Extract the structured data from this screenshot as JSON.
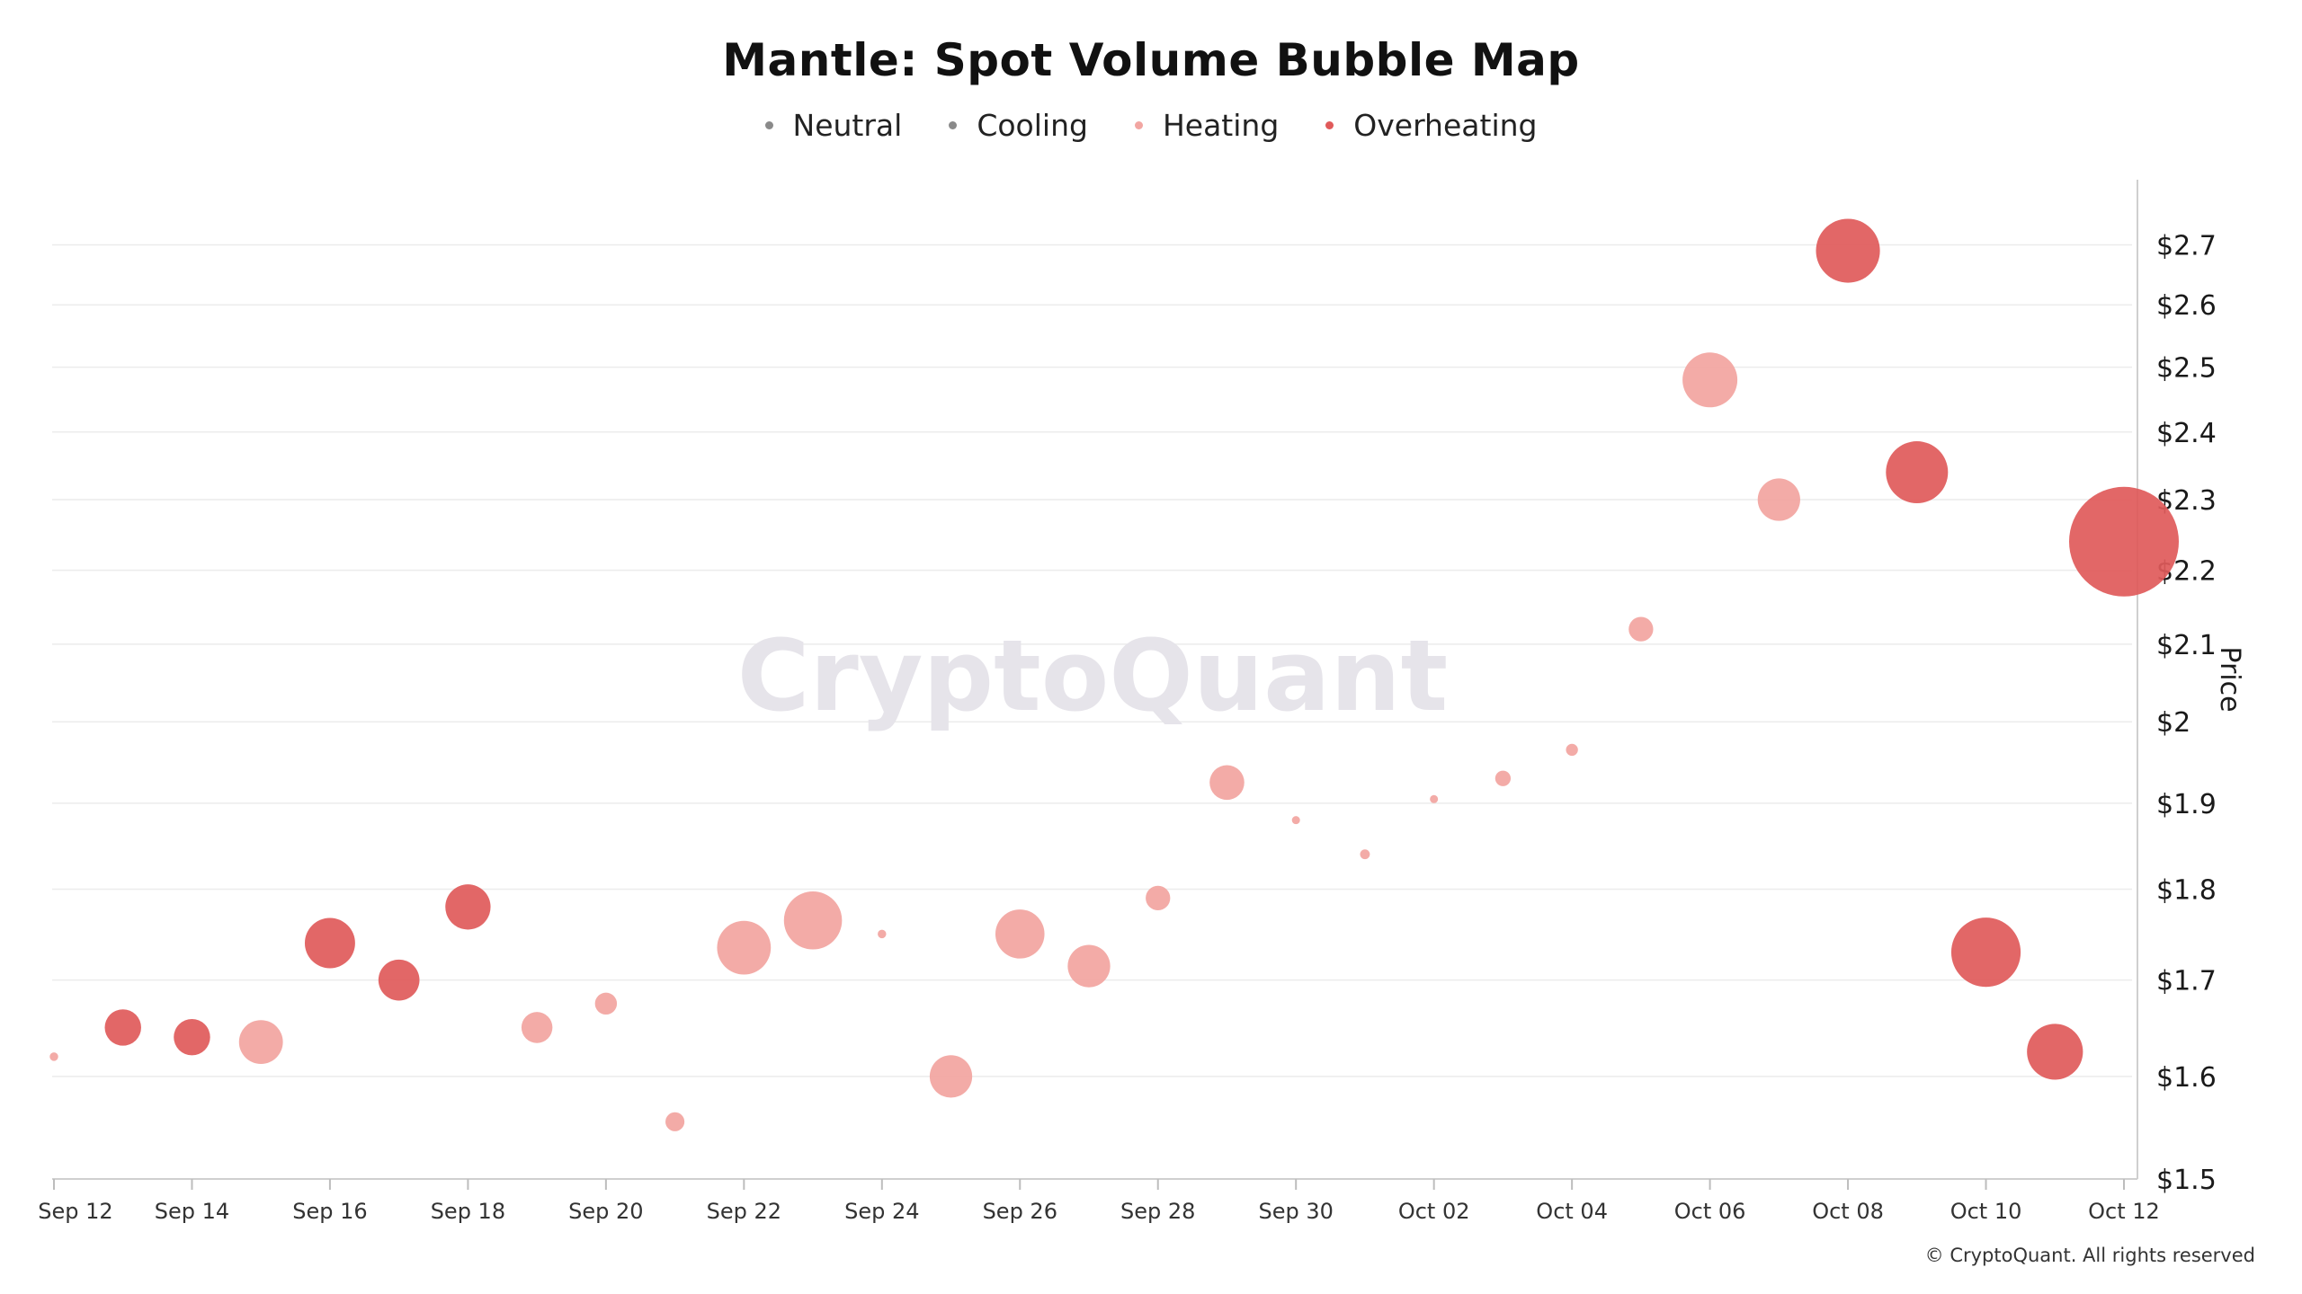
{
  "title": "Mantle: Spot Volume Bubble Map",
  "legend": [
    {
      "label": "Neutral",
      "color": "#8a8a8a"
    },
    {
      "label": "Cooling",
      "color": "#8a8a8a"
    },
    {
      "label": "Heating",
      "color": "#f2a6a2"
    },
    {
      "label": "Overheating",
      "color": "#e05a5a"
    }
  ],
  "watermark": "CryptoQuant",
  "copyright": "© CryptoQuant. All rights reserved",
  "chart_data": {
    "type": "scatter",
    "subtype": "bubble",
    "title": "Mantle: Spot Volume Bubble Map",
    "xlabel": "",
    "ylabel": "Price",
    "y_axis_side": "right",
    "ylim": [
      1.5,
      2.75
    ],
    "yscale": "log",
    "y_ticks": [
      1.5,
      1.6,
      1.7,
      1.8,
      1.9,
      2.0,
      2.1,
      2.2,
      2.3,
      2.4,
      2.5,
      2.6,
      2.7
    ],
    "y_tick_labels": [
      "$1.5",
      "$1.6",
      "$1.7",
      "$1.8",
      "$1.9",
      "$2",
      "$2.1",
      "$2.2",
      "$2.3",
      "$2.4",
      "$2.5",
      "$2.6",
      "$2.7"
    ],
    "x_start": "Sep 12",
    "x_tick_labels": [
      "Sep 12",
      "Sep 14",
      "Sep 16",
      "Sep 18",
      "Sep 20",
      "Sep 22",
      "Sep 24",
      "Sep 26",
      "Sep 28",
      "Sep 30",
      "Oct 02",
      "Oct 04",
      "Oct 06",
      "Oct 08",
      "Oct 10",
      "Oct 12"
    ],
    "x_tick_days": [
      0,
      2,
      4,
      6,
      8,
      10,
      12,
      14,
      16,
      18,
      20,
      22,
      24,
      26,
      28,
      30
    ],
    "grid": true,
    "legend_position": "top-center",
    "points": [
      {
        "date": "Sep 12",
        "day": 0,
        "price": 1.62,
        "volume": 0.3,
        "status": "Heating"
      },
      {
        "date": "Sep 13",
        "day": 1,
        "price": 1.65,
        "volume": 5.5,
        "status": "Overheating"
      },
      {
        "date": "Sep 14",
        "day": 2,
        "price": 1.64,
        "volume": 5.5,
        "status": "Overheating"
      },
      {
        "date": "Sep 15",
        "day": 3,
        "price": 1.635,
        "volume": 8.0,
        "status": "Heating"
      },
      {
        "date": "Sep 16",
        "day": 4,
        "price": 1.74,
        "volume": 10.5,
        "status": "Overheating"
      },
      {
        "date": "Sep 17",
        "day": 5,
        "price": 1.7,
        "volume": 7.0,
        "status": "Overheating"
      },
      {
        "date": "Sep 18",
        "day": 6,
        "price": 1.78,
        "volume": 8.5,
        "status": "Overheating"
      },
      {
        "date": "Sep 19",
        "day": 7,
        "price": 1.65,
        "volume": 4.0,
        "status": "Heating"
      },
      {
        "date": "Sep 20",
        "day": 8,
        "price": 1.675,
        "volume": 2.0,
        "status": "Heating"
      },
      {
        "date": "Sep 21",
        "day": 9,
        "price": 1.555,
        "volume": 1.5,
        "status": "Heating"
      },
      {
        "date": "Sep 22",
        "day": 10,
        "price": 1.735,
        "volume": 12.0,
        "status": "Heating"
      },
      {
        "date": "Sep 23",
        "day": 11,
        "price": 1.765,
        "volume": 14.0,
        "status": "Heating"
      },
      {
        "date": "Sep 24",
        "day": 12,
        "price": 1.75,
        "volume": 0.3,
        "status": "Heating"
      },
      {
        "date": "Sep 25",
        "day": 13,
        "price": 1.6,
        "volume": 7.5,
        "status": "Heating"
      },
      {
        "date": "Sep 26",
        "day": 14,
        "price": 1.75,
        "volume": 10.0,
        "status": "Heating"
      },
      {
        "date": "Sep 27",
        "day": 15,
        "price": 1.715,
        "volume": 7.5,
        "status": "Heating"
      },
      {
        "date": "Sep 28",
        "day": 16,
        "price": 1.79,
        "volume": 2.5,
        "status": "Heating"
      },
      {
        "date": "Sep 29",
        "day": 17,
        "price": 1.925,
        "volume": 5.0,
        "status": "Heating"
      },
      {
        "date": "Sep 30",
        "day": 18,
        "price": 1.88,
        "volume": 0.2,
        "status": "Heating"
      },
      {
        "date": "Oct 01",
        "day": 19,
        "price": 1.84,
        "volume": 0.4,
        "status": "Heating"
      },
      {
        "date": "Oct 02",
        "day": 20,
        "price": 1.905,
        "volume": 0.2,
        "status": "Heating"
      },
      {
        "date": "Oct 03",
        "day": 21,
        "price": 1.93,
        "volume": 1.0,
        "status": "Heating"
      },
      {
        "date": "Oct 04",
        "day": 22,
        "price": 1.965,
        "volume": 0.6,
        "status": "Heating"
      },
      {
        "date": "Oct 05",
        "day": 23,
        "price": 2.12,
        "volume": 2.5,
        "status": "Heating"
      },
      {
        "date": "Oct 06",
        "day": 24,
        "price": 2.48,
        "volume": 12.5,
        "status": "Heating"
      },
      {
        "date": "Oct 07",
        "day": 25,
        "price": 2.3,
        "volume": 7.5,
        "status": "Heating"
      },
      {
        "date": "Oct 08",
        "day": 26,
        "price": 2.69,
        "volume": 17.0,
        "status": "Overheating"
      },
      {
        "date": "Oct 09",
        "day": 27,
        "price": 2.34,
        "volume": 16.0,
        "status": "Overheating"
      },
      {
        "date": "Oct 10",
        "day": 28,
        "price": 1.73,
        "volume": 20.0,
        "status": "Overheating"
      },
      {
        "date": "Oct 11",
        "day": 29,
        "price": 1.625,
        "volume": 13.0,
        "status": "Overheating"
      },
      {
        "date": "Oct 12",
        "day": 30,
        "price": 2.24,
        "volume": 50.0,
        "status": "Overheating"
      }
    ]
  }
}
